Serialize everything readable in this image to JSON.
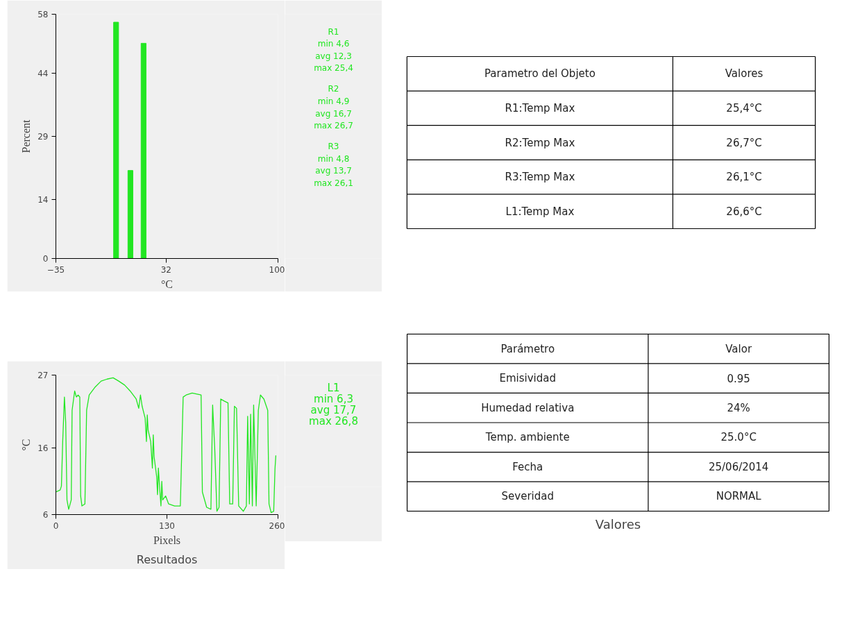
{
  "chart_data": [
    {
      "type": "bar",
      "xlabel": "°C",
      "ylabel": "Percent",
      "x": [
        1.6,
        10.3,
        18.3
      ],
      "values": [
        56.1,
        20.9,
        51.1
      ],
      "color": "#22e622",
      "xlim": [
        -35,
        100
      ],
      "xticks": [
        -35,
        32,
        100
      ],
      "ylim": [
        0,
        58
      ],
      "yticks": [
        0,
        14,
        29,
        44,
        58
      ],
      "annotations": [
        "R1",
        "min 4,6",
        "avg 12,3",
        "max 25,4",
        "R2",
        "min 4,9",
        "avg 16,7",
        "max 26,7",
        "R3",
        "min 4,8",
        "avg 13,7",
        "max 26,1"
      ]
    },
    {
      "type": "line",
      "xlabel": "Pixels",
      "ylabel": "°C",
      "subtitle": "Resultados",
      "color": "#22e622",
      "xlim": [
        0,
        260
      ],
      "xticks": [
        0,
        130,
        260
      ],
      "ylim": [
        6,
        27
      ],
      "yticks": [
        6,
        16,
        27
      ],
      "x": [
        0,
        5,
        6.5,
        8,
        10,
        11.5,
        13,
        15,
        18,
        19,
        22,
        24,
        26,
        28,
        29,
        30.5,
        34,
        36,
        39,
        46,
        53,
        60,
        67,
        73.5,
        80.5,
        87,
        94,
        97,
        99,
        101,
        104.5,
        106,
        107,
        108,
        111,
        113,
        114,
        115,
        118,
        119,
        120,
        121.5,
        123,
        124,
        125,
        128.5,
        132,
        139,
        145.7,
        149,
        152.5,
        159.5,
        170,
        171.5,
        176.5,
        181.5,
        183.5,
        186,
        188.5,
        191,
        193,
        197,
        201.5,
        203.5,
        207,
        209,
        211.5,
        214,
        219.5,
        223,
        224.5,
        226.5,
        228,
        230,
        231.5,
        234.5,
        237,
        239.5,
        243.5,
        248,
        249.5,
        252,
        255,
        256.5,
        257.5
      ],
      "values": [
        9.4,
        9.7,
        10.3,
        17,
        23.7,
        19.9,
        8.2,
        6.8,
        8.2,
        21.7,
        24.6,
        23.7,
        24,
        23.7,
        8.8,
        7.3,
        7.6,
        21.7,
        24,
        25.2,
        26.1,
        26.4,
        26.6,
        26.1,
        25.5,
        24.6,
        23.4,
        22,
        24,
        22.3,
        20.5,
        17,
        21,
        18.7,
        17,
        13,
        18,
        14.7,
        11.7,
        9,
        13,
        10,
        7.3,
        11,
        8.2,
        8.8,
        7.6,
        7.3,
        7.3,
        23.7,
        24,
        24.3,
        24,
        9.4,
        7.1,
        6.8,
        22.5,
        15.8,
        6.5,
        7.1,
        23.4,
        23.1,
        22.8,
        7.6,
        7.6,
        22.3,
        22,
        7.3,
        6.5,
        7.3,
        20.8,
        7.6,
        21.1,
        7.3,
        22.5,
        7.3,
        21.7,
        24,
        23.4,
        21.7,
        7.6,
        6.3,
        6.5,
        12.9,
        14.9
      ],
      "annotations": [
        "L1",
        "min 6,3",
        "avg 17,7",
        "max 26,8"
      ]
    },
    {
      "type": "other",
      "annotations": [
        "Parametro del Objeto",
        "Valores",
        "R1:Temp Max",
        "25,4°C",
        "R2:Temp Max",
        "26,7°C",
        "R3:Temp Max",
        "26,1°C",
        "L1:Temp Max",
        "26,6°C"
      ]
    },
    {
      "type": "other",
      "subtitle": "Valores",
      "annotations": [
        "Parámetro",
        "Valor",
        "Emisividad",
        "0.95",
        "Humedad relativa",
        "24%",
        "Temp. ambiente",
        "25.0°C",
        "Fecha",
        "25/06/2014",
        "Severidad",
        "NORMAL"
      ]
    }
  ]
}
